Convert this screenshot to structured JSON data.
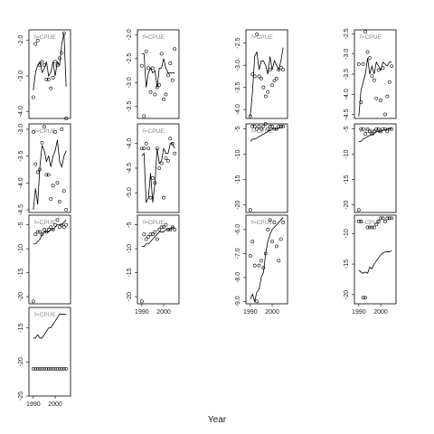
{
  "chart_data": {
    "type": "scatter",
    "xlabel": "Year",
    "panel_label": "f=CPUE",
    "x": [
      1990,
      1991,
      1992,
      1993,
      1994,
      1995,
      1996,
      1997,
      1998,
      1999,
      2000,
      2001,
      2002,
      2003,
      2004,
      2005
    ],
    "xlim": [
      1988,
      2007
    ],
    "xticks": [
      1990,
      2000
    ],
    "panels": [
      {
        "ylim": [
          -4.2,
          -1.7
        ],
        "yticks": [
          {
            "value": -2,
            "label": "-2.0"
          },
          {
            "value": -3,
            "label": "-3.0"
          },
          {
            "value": -4,
            "label": "-4.0"
          }
        ],
        "points": [
          -3.6,
          -2.1,
          -2.0,
          -2.7,
          -2.6,
          -2.7,
          -3.1,
          -3.1,
          -3.35,
          -3.05,
          -2.6,
          -2.7,
          -2.5,
          -2.35,
          -1.8,
          -4.2
        ],
        "line": [
          -3.4,
          -2.9,
          -2.7,
          -2.6,
          -2.9,
          -2.8,
          -2.6,
          -3.0,
          -2.9,
          -2.6,
          -3.0,
          -2.6,
          -2.7,
          -2.1,
          -1.8,
          -3.3
        ]
      },
      {
        "ylim": [
          -4.55,
          -2.9
        ],
        "yticks": [
          {
            "value": -3,
            "label": "-3.0"
          },
          -3.5,
          {
            "value": -4,
            "label": "-4.0"
          },
          -4.5
        ],
        "points": [
          -3.05,
          -3.65,
          -3.8,
          -3.75,
          -3.25,
          -2.95,
          -3.85,
          -3.85,
          -4.3,
          -4.05,
          -3.05,
          -4.0,
          -4.35,
          -3.0,
          -4.15,
          -4.5
        ],
        "line": [
          -4.5,
          -4.1,
          -4.4,
          -3.7,
          -3.3,
          -3.4,
          -3.6,
          -3.5,
          -3.7,
          -3.5,
          -3.4,
          -3.2,
          -3.6,
          -3.7,
          -3.5,
          -3.4
        ]
      },
      {
        "ylim": [
          -21.5,
          -3
        ],
        "yticks": [
          -5,
          -10,
          -15,
          -20
        ],
        "points": [
          -21,
          -7,
          -6.5,
          -6.5,
          -7,
          -6,
          -6.5,
          -6,
          -5.5,
          -6,
          -5,
          -4,
          -5.5,
          -5,
          -5.5,
          -5
        ],
        "line": [
          -9,
          -9,
          -8.5,
          -8,
          -7,
          -6.5,
          -6.5,
          -6.5,
          -6,
          -6,
          -5.5,
          -5,
          -5,
          -5,
          -4.5,
          -4
        ]
      },
      {
        "ylim": [
          -25,
          -12
        ],
        "yticks": [
          -15,
          -20,
          -25
        ],
        "points": [
          -21,
          -21,
          -21,
          -21,
          -21,
          -21,
          -21,
          -21,
          -21,
          -21,
          -21,
          -21,
          -21,
          -21,
          -21,
          -21
        ],
        "line": [
          -16.5,
          -16.5,
          -16,
          -16.5,
          -16.5,
          -16,
          -15.5,
          -15,
          -15,
          -14.5,
          -14,
          -13.5,
          -13,
          -13,
          -13,
          -13
        ]
      },
      {
        "ylim": [
          -3.75,
          -1.9
        ],
        "yticks": [
          {
            "value": -2,
            "label": "-2.0"
          },
          -2.5,
          {
            "value": -3,
            "label": "-3.0"
          },
          -3.5
        ],
        "points": [
          -2.65,
          -3.7,
          -2.35,
          -2.7,
          -3.2,
          -2.7,
          -3.25,
          -3.1,
          -3.05,
          -2.4,
          -3.35,
          -3.25,
          -2.85,
          -2.6,
          -2.95,
          -2.3
        ],
        "line": [
          -2.4,
          -2.4,
          -3.1,
          -2.8,
          -2.7,
          -2.8,
          -2.75,
          -3.1,
          -2.7,
          -2.7,
          -2.5,
          -2.7,
          -2.8,
          -2.8,
          -2.8,
          -2.8
        ]
      },
      {
        "ylim": [
          -5.4,
          -3.6
        ],
        "yticks": [
          {
            "value": -4,
            "label": "-4.0"
          },
          -4.5,
          {
            "value": -5,
            "label": "-5.0"
          }
        ],
        "points": [
          -4.1,
          -4.1,
          -4.0,
          -4.1,
          -5.1,
          -4.7,
          -4.8,
          -4.1,
          -4.5,
          -4.4,
          -5.1,
          -4.3,
          -4.35,
          -3.9,
          -4.0,
          -4.2
        ],
        "line": [
          -4.25,
          -4.2,
          -5.2,
          -5.1,
          -4.6,
          -5.2,
          -4.8,
          -4.1,
          -4.4,
          -4.35,
          -4.1,
          -4.2,
          -4.2,
          -4.0,
          -4.0,
          -4.1
        ]
      },
      {
        "ylim": [
          -21.5,
          -3
        ],
        "yticks": [
          -5,
          -10,
          -15,
          -20
        ],
        "points": [
          -21,
          -7,
          -8,
          -7.5,
          -7,
          -7,
          -6.5,
          -8,
          -6,
          -5.5,
          -5.5,
          -5,
          -6,
          -6,
          -5.5,
          -6
        ],
        "line": [
          -9.5,
          -9.5,
          -9,
          -9,
          -8.5,
          -8,
          -7.5,
          -7,
          -6.5,
          -6.5,
          -6.5,
          -6,
          -6,
          -6,
          -5.5,
          -5.5
        ]
      },
      {
        "ylim": [
          -4.2,
          -2.2
        ],
        "yticks": [
          -2.5,
          {
            "value": -3,
            "label": "-3.0"
          },
          -3.5,
          {
            "value": -4,
            "label": "-4.0"
          }
        ],
        "points": [
          -4.15,
          -3.2,
          -3.25,
          -2.3,
          -3.25,
          -3.3,
          -3.5,
          -3.7,
          -3.6,
          -3.1,
          -3.45,
          -3.35,
          -3.3,
          -3.1,
          -3.05,
          -3.1
        ],
        "line": [
          -4.15,
          -3.6,
          -2.8,
          -2.7,
          -3.1,
          -2.9,
          -2.9,
          -3.0,
          -3.2,
          -2.8,
          -3.1,
          -2.9,
          -3.0,
          -3.1,
          -2.9,
          -2.6
        ]
      },
      {
        "ylim": [
          -21.5,
          -4
        ],
        "yticks": [
          -5,
          -10,
          -15,
          -20
        ],
        "points": [
          -21,
          -4.5,
          -4.5,
          -5,
          -4.5,
          -5,
          -4.5,
          -4,
          -5,
          -4.5,
          -4.5,
          -5,
          -5,
          -4.5,
          -4.5,
          -4.5
        ],
        "line": [
          -7.5,
          -7,
          -7,
          -6.8,
          -6.5,
          -6.3,
          -6,
          -5.8,
          -5.5,
          -5.3,
          -5,
          -5,
          -5,
          -4.8,
          -4.8,
          -4.5
        ]
      },
      {
        "ylim": [
          -9.1,
          -5.4
        ],
        "yticks": [
          {
            "value": -6,
            "label": "-6.0"
          },
          {
            "value": -7,
            "label": "-7.0"
          },
          {
            "value": -8,
            "label": "-8.0"
          },
          {
            "value": -9,
            "label": "-9.0"
          }
        ],
        "points": [
          -7.1,
          -6.5,
          -7.5,
          -9.0,
          -7.5,
          -7.3,
          -7.6,
          -7.0,
          -6.0,
          -5.6,
          -6.5,
          -5.7,
          -6.7,
          -7.3,
          -6.4,
          -5.7
        ],
        "line": [
          -8.9,
          -8.7,
          -9.0,
          -8.6,
          -8.5,
          -8.0,
          -7.8,
          -7.0,
          -6.5,
          -6.2,
          -6.0,
          -5.9,
          -5.8,
          -5.7,
          -5.6,
          -5.5
        ]
      },
      {
        "ylim": [
          -4.6,
          -2.4
        ],
        "yticks": [
          -2.5,
          {
            "value": -3,
            "label": "-3.0"
          },
          -3.5,
          {
            "value": -4,
            "label": "-4.0"
          },
          -4.5
        ],
        "points": [
          -3.25,
          -4.2,
          -3.25,
          -2.45,
          -2.95,
          -3.1,
          -3.55,
          -3.65,
          -4.1,
          -3.4,
          -4.15,
          -3.35,
          -4.5,
          -4.05,
          -3.7,
          -3.3
        ],
        "line": [
          -4.55,
          -3.9,
          -3.7,
          -3.5,
          -3.1,
          -3.5,
          -3.3,
          -3.5,
          -3.2,
          -3.3,
          -3.4,
          -3.2,
          -3.25,
          -3.3,
          -3.2,
          -3.2
        ]
      },
      {
        "ylim": [
          -21.5,
          -4
        ],
        "yticks": [
          -5,
          -10,
          -15,
          -20
        ],
        "points": [
          -21,
          -5,
          -5,
          -6,
          -5,
          -5.5,
          -6,
          -5.5,
          -5,
          -5,
          -5.5,
          -5,
          -5,
          -5.5,
          -5,
          -5
        ],
        "line": [
          -7.5,
          -7.5,
          -7,
          -6.8,
          -6.5,
          -6.3,
          -6,
          -6,
          -5.5,
          -5.5,
          -5.5,
          -5.3,
          -5.2,
          -5,
          -5,
          -4.8
        ]
      },
      {
        "ylim": [
          -21.5,
          -7
        ],
        "yticks": [
          -10,
          -15,
          -20
        ],
        "points": [
          -8,
          -8,
          -20.5,
          -20.5,
          -9,
          -9,
          -9,
          -9,
          -8.5,
          -8,
          -7.5,
          -7.5,
          -8,
          -7.5,
          -7.5,
          -7.5
        ],
        "line": [
          -16,
          -16.3,
          -16.5,
          -16.3,
          -16.5,
          -15.5,
          -15.8,
          -15,
          -14.5,
          -14,
          -13.5,
          -13.2,
          -13,
          -13,
          -13,
          -12.8
        ]
      }
    ]
  }
}
